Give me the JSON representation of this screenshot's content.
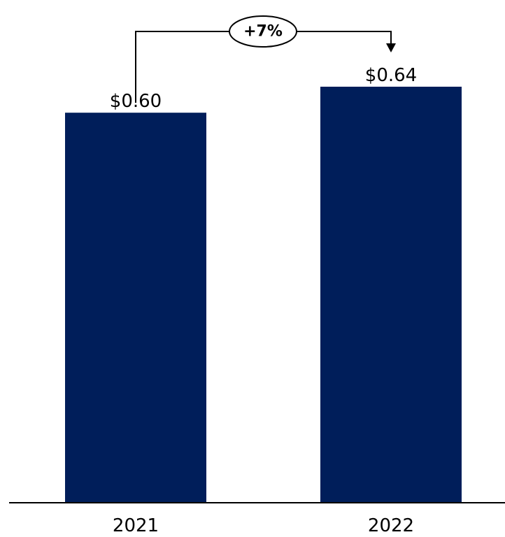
{
  "chart_data": {
    "type": "bar",
    "categories": [
      "2021",
      "2022"
    ],
    "values": [
      0.6,
      0.64
    ],
    "value_labels": [
      "$0.60",
      "$0.64"
    ],
    "ylim": [
      0,
      0.64
    ],
    "grid": false,
    "colors": {
      "bar": "#001E5A",
      "axis": "#000000"
    },
    "annotation": {
      "label": "+7%",
      "from": "2021",
      "to": "2022"
    }
  }
}
